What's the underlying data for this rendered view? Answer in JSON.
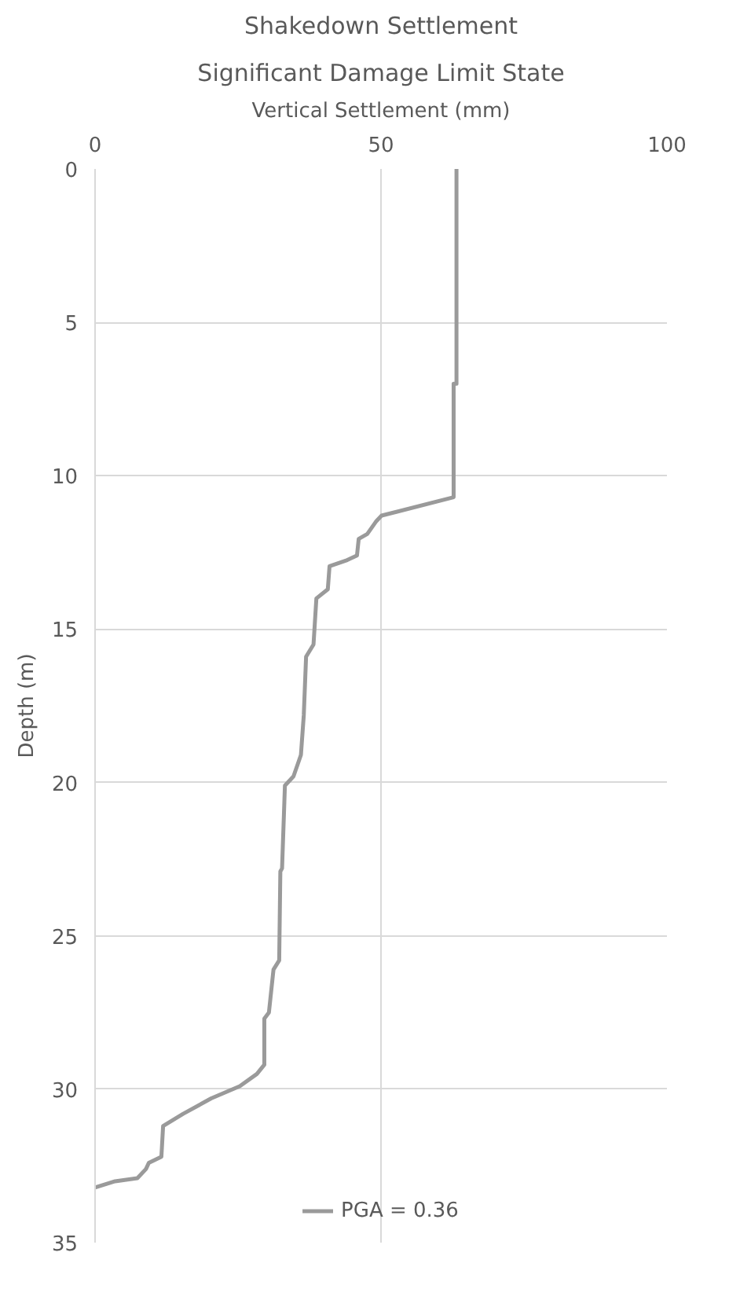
{
  "chart_data": {
    "type": "line",
    "title": "Shakedown Settlement",
    "subtitle": "Significant Damage Limit State",
    "xlabel": "Vertical Settlement (mm)",
    "ylabel": "Depth (m)",
    "xlim": [
      0,
      100
    ],
    "xticks": [
      0,
      50,
      100
    ],
    "ylim": [
      35,
      0
    ],
    "yticks": [
      0,
      5,
      10,
      15,
      20,
      25,
      30,
      35
    ],
    "grid": true,
    "legend": "bottom",
    "marker": "none",
    "line_style": "solid",
    "series": [
      {
        "name": "PGA = 0.36",
        "color": "#9a9a9a",
        "x": [
          63.2,
          63.2,
          62.7,
          62.7,
          50.1,
          49.1,
          47.6,
          46.1,
          45.8,
          44.1,
          41.0,
          40.7,
          38.7,
          38.2,
          36.9,
          36.5,
          36.0,
          34.7,
          33.2,
          32.7,
          32.4,
          32.2,
          31.2,
          30.4,
          29.6,
          29.6,
          28.3,
          25.3,
          20.3,
          15.4,
          11.9,
          11.6,
          9.4,
          8.9,
          7.4,
          3.5,
          0
        ],
        "values": [
          0,
          7.0,
          7.0,
          10.7,
          11.3,
          11.5,
          11.9,
          12.06,
          12.6,
          12.75,
          12.95,
          13.7,
          14.0,
          15.5,
          15.9,
          17.8,
          19.1,
          19.8,
          20.1,
          22.8,
          22.9,
          25.8,
          26.1,
          27.5,
          27.7,
          29.2,
          29.5,
          29.9,
          30.3,
          30.8,
          31.2,
          32.2,
          32.4,
          32.6,
          32.9,
          33.0,
          33.2
        ]
      }
    ]
  }
}
